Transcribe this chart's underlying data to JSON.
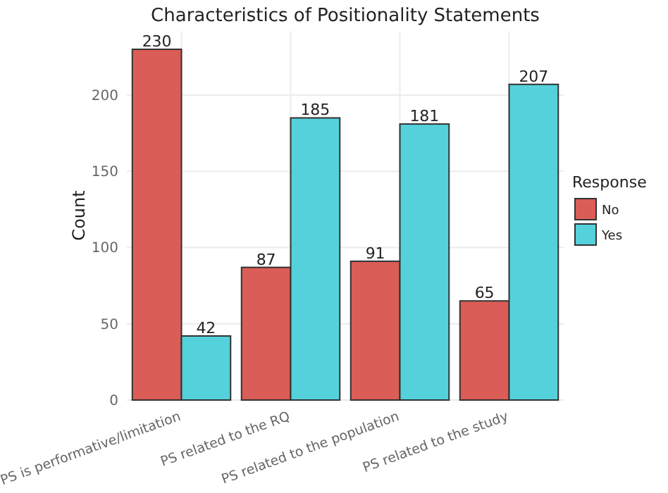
{
  "chart_data": {
    "type": "bar",
    "title": "Characteristics of Positionality Statements",
    "xlabel": null,
    "ylabel": "Count",
    "legend_title": "Response",
    "categories": [
      "PS is performative/limitation",
      "PS related to the RQ",
      "PS related to the population",
      "PS related to the study"
    ],
    "series": [
      {
        "name": "No",
        "color": "#db5d57",
        "values": [
          230,
          87,
          91,
          65
        ]
      },
      {
        "name": "Yes",
        "color": "#55d1db",
        "values": [
          42,
          185,
          181,
          207
        ]
      }
    ],
    "ylim": [
      0,
      242
    ],
    "yticks": [
      0,
      50,
      100,
      150,
      200
    ],
    "grid": true,
    "legend": "right",
    "data_labels": true
  }
}
